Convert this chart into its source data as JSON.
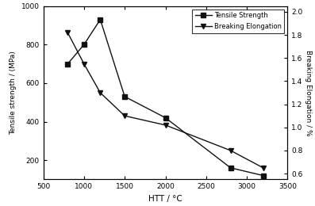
{
  "tensile_x": [
    800,
    1000,
    1200,
    1500,
    2000,
    2800,
    3200
  ],
  "tensile_y": [
    700,
    800,
    930,
    530,
    420,
    160,
    120
  ],
  "elongation_x": [
    800,
    1000,
    1200,
    1500,
    2000,
    2800,
    3200
  ],
  "elongation_y": [
    1.82,
    1.55,
    1.3,
    1.1,
    1.02,
    0.8,
    0.65
  ],
  "xlim": [
    500,
    3500
  ],
  "ylim_left": [
    100,
    1000
  ],
  "ylim_right": [
    0.55,
    2.05
  ],
  "xlabel": "HTT / °C",
  "ylabel_left": "Tensile strength / (MPa)",
  "ylabel_right": "Breaking Elongation / %",
  "legend_tensile": "Tensile Strength",
  "legend_elongation": "Breaking Elongation",
  "line_color": "#111111",
  "background_color": "#ffffff",
  "xticks": [
    500,
    1000,
    1500,
    2000,
    2500,
    3000,
    3500
  ],
  "yticks_left": [
    200,
    400,
    600,
    800,
    1000
  ],
  "yticks_right": [
    0.6,
    0.8,
    1.0,
    1.2,
    1.4,
    1.6,
    1.8,
    2.0
  ]
}
